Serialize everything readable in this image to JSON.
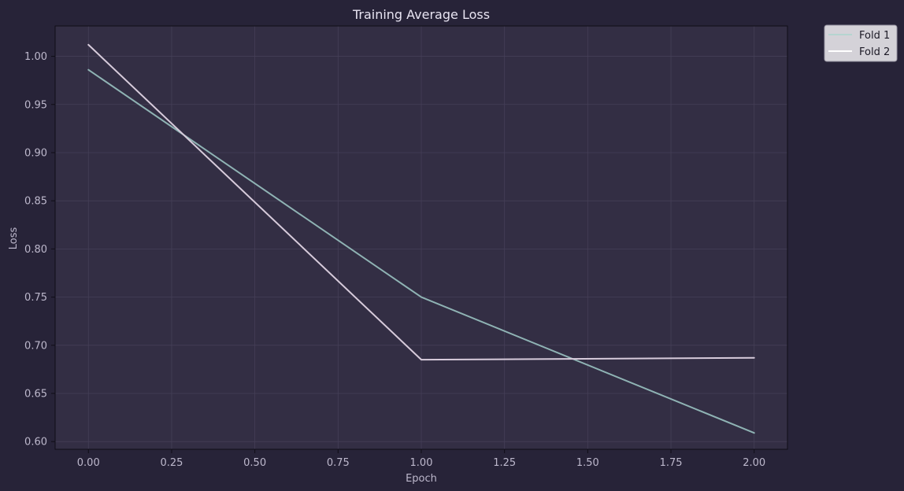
{
  "chart_data": {
    "type": "line",
    "title": "Training Average Loss",
    "xlabel": "Epoch",
    "ylabel": "Loss",
    "x": [
      0,
      1,
      2
    ],
    "xlim": [
      -0.1,
      2.1
    ],
    "ylim": [
      0.592,
      1.0315
    ],
    "xticks": [
      0.0,
      0.25,
      0.5,
      0.75,
      1.0,
      1.25,
      1.5,
      1.75,
      2.0
    ],
    "xtick_labels": [
      "0.00",
      "0.25",
      "0.50",
      "0.75",
      "1.00",
      "1.25",
      "1.50",
      "1.75",
      "2.00"
    ],
    "yticks": [
      0.6,
      0.65,
      0.7,
      0.75,
      0.8,
      0.85,
      0.9,
      0.95,
      1.0
    ],
    "ytick_labels": [
      "0.60",
      "0.65",
      "0.70",
      "0.75",
      "0.80",
      "0.85",
      "0.90",
      "0.95",
      "1.00"
    ],
    "grid": true,
    "legend_position": "outside-top-right",
    "series": [
      {
        "name": "Fold 1",
        "values": [
          0.986,
          0.75,
          0.609
        ],
        "color": "#8fb3b4"
      },
      {
        "name": "Fold 2",
        "values": [
          1.012,
          0.685,
          0.687
        ],
        "color": "#d7cbdb"
      }
    ],
    "colors": {
      "background": "#272338",
      "plot_background": "#332e44",
      "grid": "#453f57",
      "axis": "#0f0d16",
      "tick_text": "#bdb8cc",
      "title_text": "#e8e4f2",
      "legend_background": "#d4d2d8",
      "legend_border": "#9a97a4"
    }
  }
}
